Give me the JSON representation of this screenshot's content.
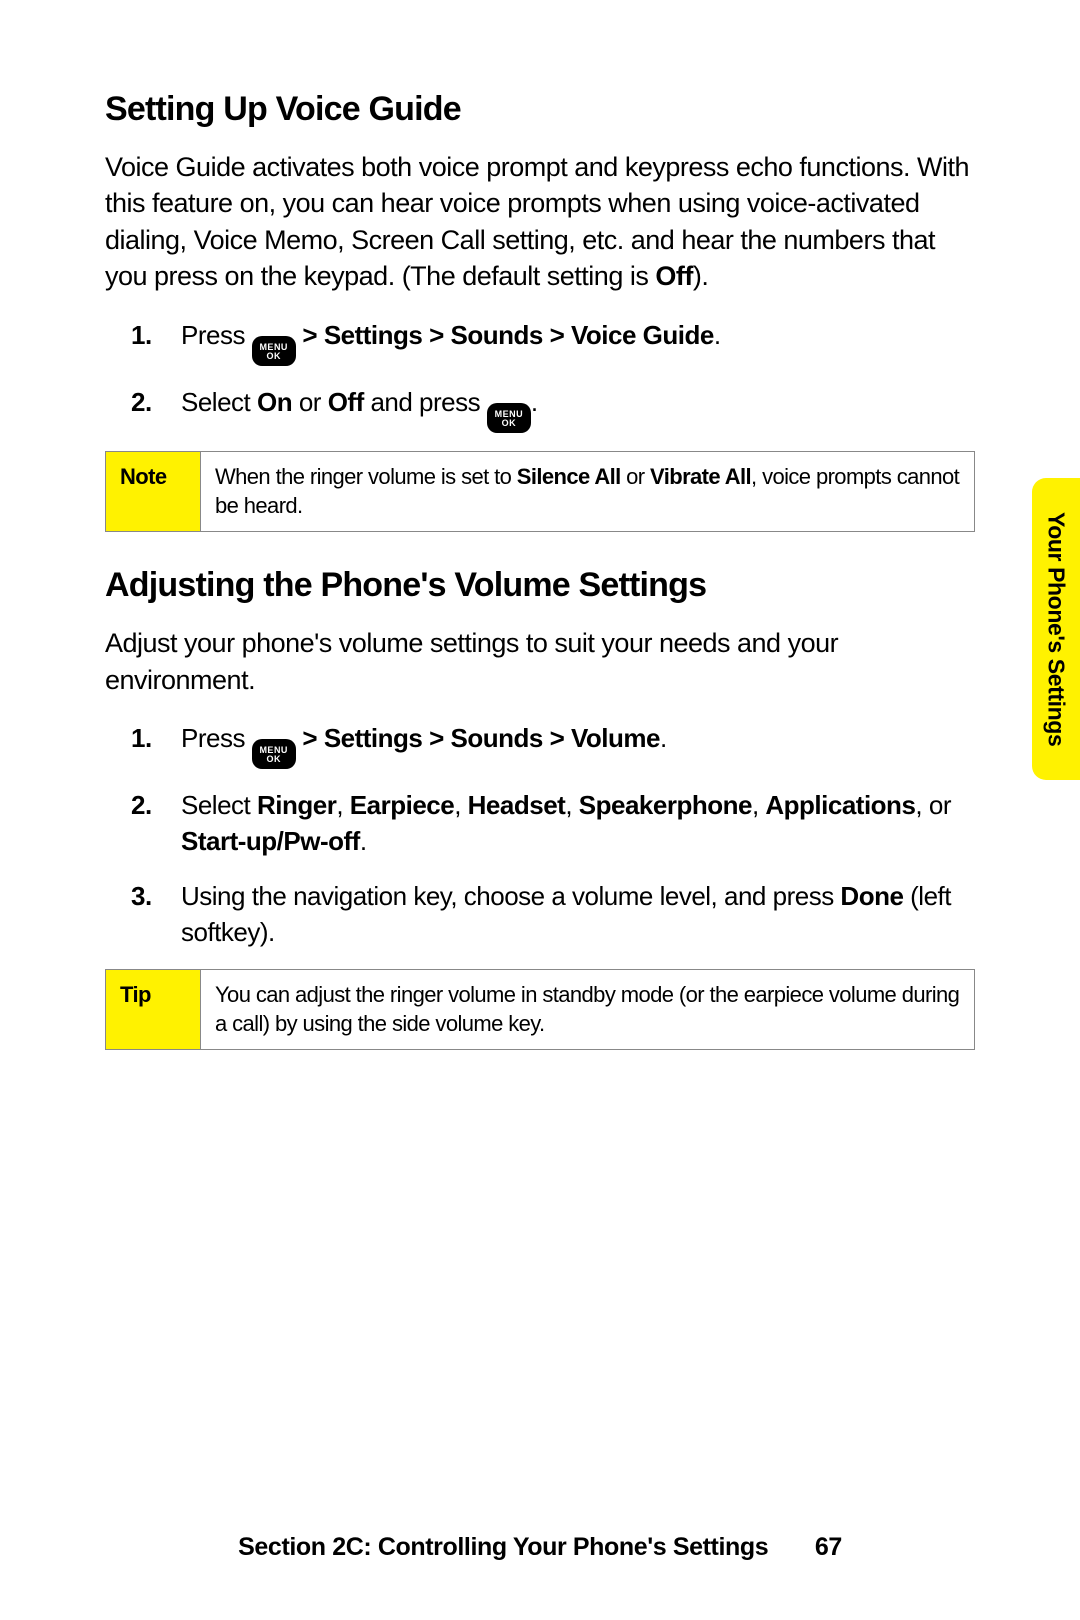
{
  "colors": {
    "accent_yellow": "#fff200",
    "text": "#000000",
    "border_grey": "#888888",
    "background": "#ffffff"
  },
  "side_tab": {
    "label": "Your Phone's Settings"
  },
  "section1": {
    "heading": "Setting Up Voice Guide",
    "intro_pre": "Voice Guide activates both voice prompt and keypress echo functions. With this feature on, you can hear voice prompts when using voice-activated dialing, Voice Memo, Screen Call setting, etc. and hear the numbers that you press on the keypad. (The default setting is ",
    "intro_bold": "Off",
    "intro_post": ").",
    "steps": {
      "s1": {
        "num": "1.",
        "pre": "Press ",
        "bold_after_icon": " > Settings > Sounds > Voice Guide",
        "post": "."
      },
      "s2": {
        "num": "2.",
        "pre": "Select ",
        "bold1": "On",
        "mid": " or ",
        "bold2": "Off",
        "post_pre_icon": " and press ",
        "post": "."
      }
    },
    "note": {
      "label": "Note",
      "pre": "When the ringer volume is set to ",
      "bold1": "Silence All",
      "mid": " or ",
      "bold2": "Vibrate All",
      "post": ", voice prompts cannot be heard."
    }
  },
  "section2": {
    "heading": "Adjusting the Phone's Volume Settings",
    "intro": "Adjust your phone's volume settings to suit your needs and your environment.",
    "steps": {
      "s1": {
        "num": "1.",
        "pre": "Press ",
        "bold_after_icon": " > Settings > Sounds > Volume",
        "post": "."
      },
      "s2": {
        "num": "2.",
        "pre": "Select ",
        "b1": "Ringer",
        "c1": ", ",
        "b2": "Earpiece",
        "c2": ", ",
        "b3": "Headset",
        "c3": ", ",
        "b4": "Speakerphone",
        "c4": ", ",
        "b5": "Applications",
        "c5": ", or ",
        "b6": "Start-up/Pw-off",
        "post": "."
      },
      "s3": {
        "num": "3.",
        "pre": "Using the navigation key, choose a volume level, and press ",
        "bold": "Done",
        "post": " (left softkey)."
      }
    },
    "tip": {
      "label": "Tip",
      "text": "You can adjust the ringer volume in standby mode (or the earpiece volume during a call) by using the side volume key."
    }
  },
  "footer": {
    "section_label": "Section 2C: Controlling Your Phone's Settings",
    "page_number": "67"
  },
  "menu_icon": {
    "line1": "MENU",
    "line2": "OK"
  }
}
